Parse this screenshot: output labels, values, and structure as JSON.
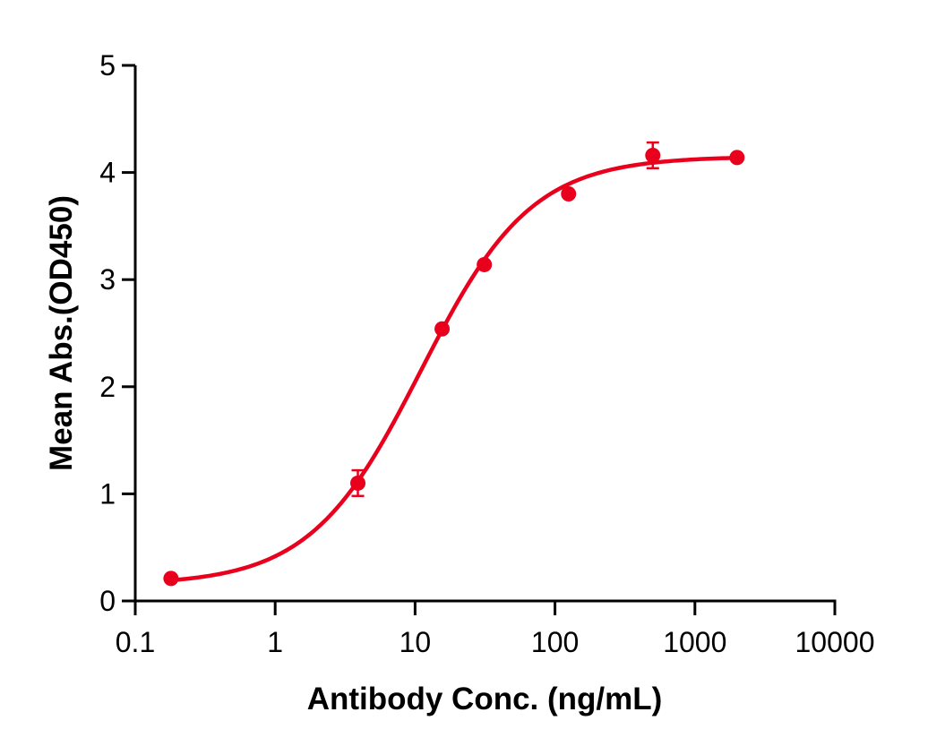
{
  "chart_data": {
    "type": "scatter",
    "title": "",
    "xlabel": "Antibody Conc. (ng/mL)",
    "ylabel": "Mean Abs.(OD450)",
    "xscale": "log",
    "xlim": [
      0.1,
      10000
    ],
    "ylim": [
      0,
      5
    ],
    "x_ticks": [
      "0.1",
      "1",
      "10",
      "100",
      "1000",
      "10000"
    ],
    "x_tick_values": [
      0.1,
      1,
      10,
      100,
      1000,
      10000
    ],
    "y_ticks": [
      "0",
      "1",
      "2",
      "3",
      "4",
      "5"
    ],
    "y_tick_values": [
      0,
      1,
      2,
      3,
      4,
      5
    ],
    "grid": false,
    "legend": null,
    "color": "#E8001C",
    "series": [
      {
        "name": "Mean Abs.(OD450)",
        "x": [
          0.18,
          3.9,
          15.6,
          31.25,
          125,
          500,
          2000
        ],
        "y": [
          0.21,
          1.1,
          2.54,
          3.14,
          3.8,
          4.16,
          4.14
        ],
        "error": [
          0.02,
          0.12,
          0.03,
          0.03,
          0.03,
          0.12,
          0.03
        ]
      }
    ],
    "fit": {
      "model": "4PL",
      "bottom": 0.15,
      "top": 4.15,
      "ec50": 11.0,
      "hill": 1.1,
      "x_range": [
        0.18,
        2000
      ]
    }
  }
}
